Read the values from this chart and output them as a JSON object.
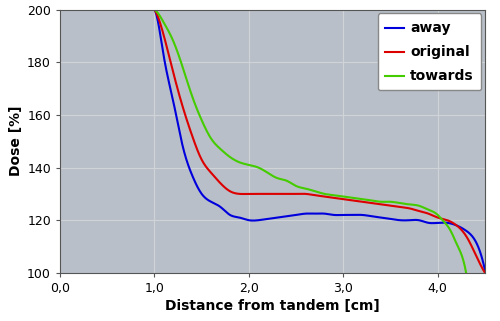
{
  "title": "",
  "xlabel": "Distance from tandem [cm]",
  "ylabel": "Dose [%]",
  "xlim": [
    0,
    4.5
  ],
  "ylim": [
    100,
    200
  ],
  "xticks": [
    0.0,
    1.0,
    2.0,
    3.0,
    4.0
  ],
  "xtick_labels": [
    "0,0",
    "1,0",
    "2,0",
    "3,0",
    "4,0"
  ],
  "yticks": [
    100,
    120,
    140,
    160,
    180,
    200
  ],
  "axes_facecolor": "#b8bfc8",
  "figure_facecolor": "#ffffff",
  "grid_color": "#d0d4d8",
  "away_color": "#0000dd",
  "original_color": "#dd0000",
  "towards_color": "#44cc00",
  "linewidth": 1.5,
  "away_x": [
    1.0,
    1.05,
    1.1,
    1.2,
    1.3,
    1.4,
    1.5,
    1.6,
    1.7,
    1.8,
    1.9,
    2.0,
    2.1,
    2.2,
    2.3,
    2.4,
    2.5,
    2.6,
    2.7,
    2.8,
    2.9,
    3.0,
    3.1,
    3.2,
    3.3,
    3.4,
    3.5,
    3.6,
    3.7,
    3.8,
    3.85,
    3.9,
    4.0,
    4.1,
    4.2,
    4.3,
    4.4,
    4.5
  ],
  "away_y": [
    200,
    193,
    182,
    165,
    148,
    137,
    130,
    127,
    125,
    122,
    121,
    120,
    120,
    120.5,
    121,
    121.5,
    122,
    122.5,
    122.5,
    122.5,
    122,
    122,
    122,
    122,
    121.5,
    121,
    120.5,
    120,
    120,
    120,
    119.5,
    119,
    119,
    119,
    118,
    116,
    112,
    101
  ],
  "original_x": [
    1.0,
    1.05,
    1.1,
    1.2,
    1.3,
    1.4,
    1.5,
    1.6,
    1.7,
    1.8,
    1.9,
    2.0,
    2.1,
    2.2,
    2.3,
    2.4,
    2.5,
    2.6,
    2.7,
    2.8,
    2.9,
    3.0,
    3.1,
    3.2,
    3.3,
    3.4,
    3.5,
    3.6,
    3.7,
    3.8,
    3.9,
    4.0,
    4.1,
    4.2,
    4.3,
    4.4,
    4.5
  ],
  "original_y": [
    200,
    196,
    190,
    176,
    163,
    152,
    143,
    138,
    134,
    131,
    130,
    130,
    130,
    130,
    130,
    130,
    130,
    130,
    129.5,
    129,
    128.5,
    128,
    127.5,
    127,
    126.5,
    126,
    125.5,
    125,
    124.5,
    123.5,
    122.5,
    121,
    120,
    118,
    114,
    107,
    100
  ],
  "towards_x": [
    1.0,
    1.05,
    1.1,
    1.2,
    1.3,
    1.4,
    1.5,
    1.6,
    1.7,
    1.8,
    1.9,
    2.0,
    2.1,
    2.2,
    2.3,
    2.4,
    2.5,
    2.6,
    2.7,
    2.8,
    2.9,
    3.0,
    3.1,
    3.2,
    3.3,
    3.4,
    3.5,
    3.6,
    3.7,
    3.8,
    3.9,
    4.0,
    4.05,
    4.1,
    4.15,
    4.2,
    4.25,
    4.3
  ],
  "towards_y": [
    200,
    198,
    195,
    188,
    178,
    167,
    158,
    151,
    147,
    144,
    142,
    141,
    140,
    138,
    136,
    135,
    133,
    132,
    131,
    130,
    129.5,
    129,
    128.5,
    128,
    127.5,
    127,
    127,
    126.5,
    126,
    125.5,
    124,
    122,
    120,
    118,
    115,
    111,
    107,
    100
  ]
}
